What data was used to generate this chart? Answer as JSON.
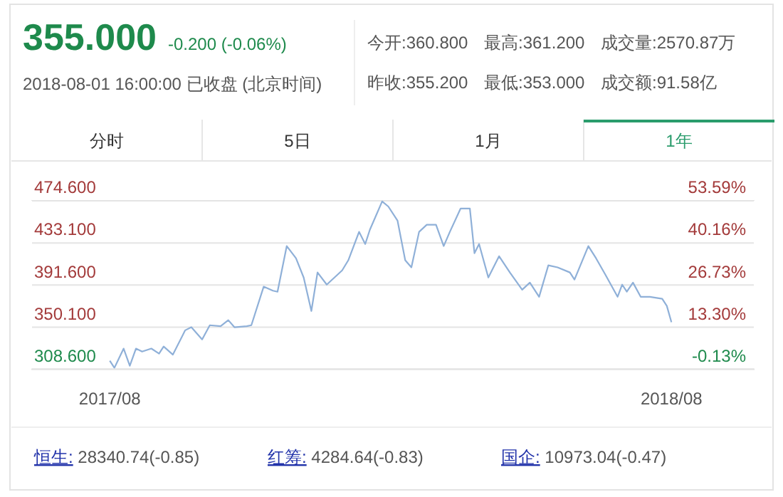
{
  "chart_data": {
    "type": "line",
    "title": "355.000",
    "subtitle": "-0.200 (-0.06%)",
    "annotations": [
      "2018-08-01 16:00:00 已收盘 (北京时间)",
      "今开:360.800",
      "最高:361.200",
      "成交量:2570.87万",
      "昨收:355.200",
      "最低:353.000",
      "成交额:91.58亿",
      "分时",
      "5日",
      "1月",
      "1年",
      "恒生: 28340.74(-0.85)",
      "红筹: 4284.64(-0.83)",
      "国企: 10973.04(-0.47)"
    ],
    "x": [
      "2017-08-01",
      "2017-08-04",
      "2017-08-10",
      "2017-08-14",
      "2017-08-18",
      "2017-08-22",
      "2017-08-28",
      "2017-09-02",
      "2017-09-05",
      "2017-09-11",
      "2017-09-19",
      "2017-09-23",
      "2017-09-30",
      "2017-10-05",
      "2017-10-12",
      "2017-10-17",
      "2017-10-21",
      "2017-10-29",
      "2017-11-01",
      "2017-11-09",
      "2017-11-15",
      "2017-11-18",
      "2017-11-24",
      "2017-11-30",
      "2017-12-05",
      "2017-12-10",
      "2017-12-14",
      "2017-12-20",
      "2017-12-30",
      "2018-01-03",
      "2018-01-10",
      "2018-01-14",
      "2018-01-17",
      "2018-01-25",
      "2018-01-29",
      "2018-02-04",
      "2018-02-09",
      "2018-02-13",
      "2018-02-18",
      "2018-02-23",
      "2018-03-01",
      "2018-03-06",
      "2018-03-10",
      "2018-03-17",
      "2018-03-23",
      "2018-03-26",
      "2018-03-29",
      "2018-04-04",
      "2018-04-11",
      "2018-04-18",
      "2018-04-26",
      "2018-05-01",
      "2018-05-07",
      "2018-05-13",
      "2018-05-19",
      "2018-05-27",
      "2018-05-30",
      "2018-06-08",
      "2018-06-13",
      "2018-06-19",
      "2018-06-27",
      "2018-06-30",
      "2018-07-03",
      "2018-07-07",
      "2018-07-12",
      "2018-07-18",
      "2018-07-26",
      "2018-07-29",
      "2018-08-01"
    ],
    "series": [
      {
        "color": "#8fb0d8",
        "values": [
          317,
          310,
          329,
          312,
          329,
          326,
          329,
          324,
          331,
          323,
          347,
          350,
          338,
          352,
          351,
          357,
          350,
          351,
          352,
          390,
          386,
          385,
          430,
          418,
          399,
          366,
          404,
          392,
          406,
          416,
          444,
          432,
          446,
          474,
          469,
          455,
          416,
          409,
          444,
          451,
          451,
          430,
          444,
          467,
          467,
          423,
          432,
          399,
          420,
          404,
          387,
          394,
          380,
          411,
          409,
          404,
          397,
          430,
          418,
          402,
          380,
          392,
          385,
          394,
          380,
          380,
          378,
          371,
          355
        ]
      }
    ],
    "xlim": [
      "2017-06-11",
      "2018-09-24"
    ],
    "xticks": [
      {
        "value": "2017-08-01",
        "label": "2017/08"
      },
      {
        "value": "2018-08-01",
        "label": "2018/08"
      }
    ],
    "ylim": [
      308.6,
      474.6
    ],
    "yticks": [
      {
        "value": 308.6,
        "label": "308.600"
      },
      {
        "value": 350.1,
        "label": "350.100"
      },
      {
        "value": 391.6,
        "label": "391.600"
      },
      {
        "value": 433.1,
        "label": "433.100"
      },
      {
        "value": 474.6,
        "label": "474.600"
      }
    ],
    "y2lim": [
      -0.13,
      53.59
    ],
    "y2ticks": [
      {
        "value": -0.13,
        "label": "-0.13%"
      },
      {
        "value": 13.3,
        "label": "13.30%"
      },
      {
        "value": 26.73,
        "label": "26.73%"
      },
      {
        "value": 40.16,
        "label": "40.16%"
      },
      {
        "value": 53.59,
        "label": "53.59%"
      }
    ],
    "grid": "y",
    "marker": "none",
    "line_style": "solid"
  }
}
